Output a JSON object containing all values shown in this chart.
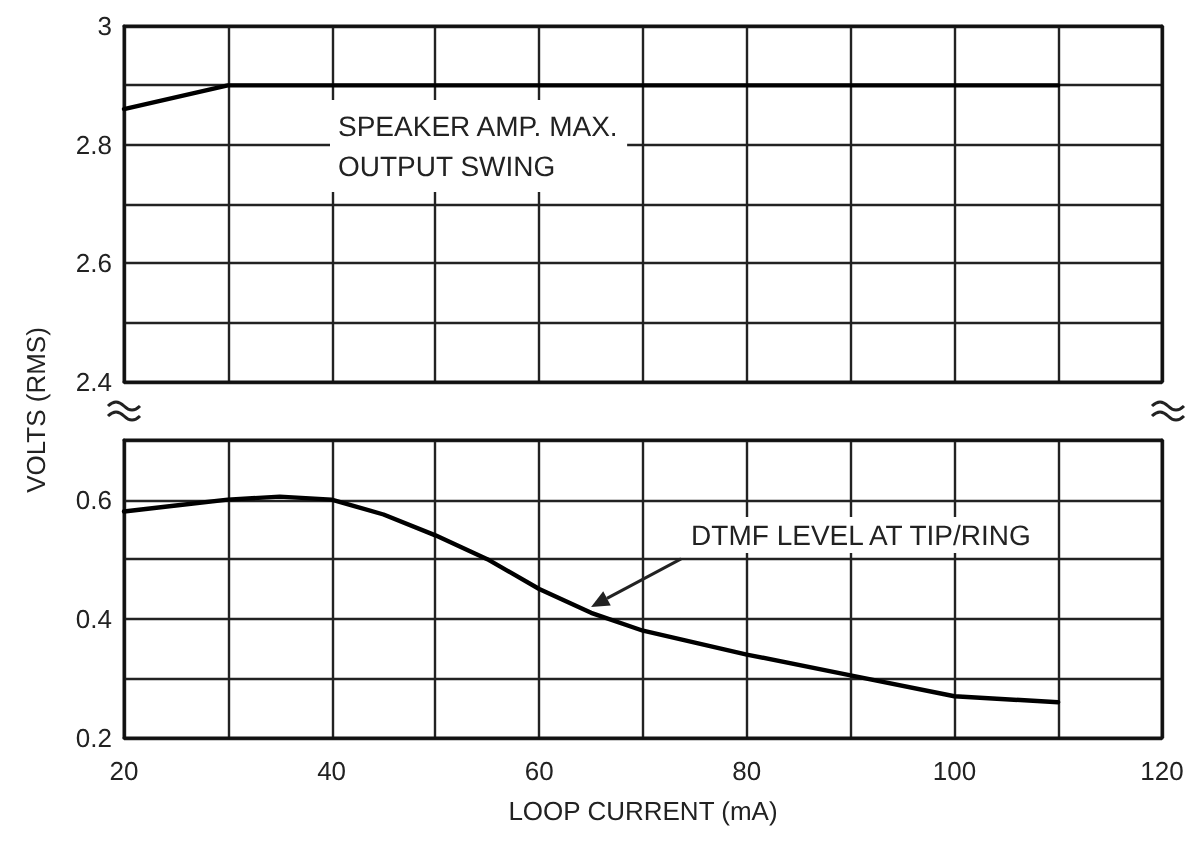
{
  "chart_data": [
    {
      "type": "line",
      "annotations": [
        "SPEAKER AMP. MAX.\nOUTPUT SWING"
      ],
      "x": [
        20,
        30,
        40,
        50,
        60,
        70,
        80,
        90,
        100,
        110
      ],
      "series": [
        {
          "color": "#000000",
          "values": [
            2.86,
            2.9,
            2.9,
            2.9,
            2.9,
            2.9,
            2.9,
            2.9,
            2.9,
            2.9
          ]
        }
      ],
      "xlim": [
        20,
        120
      ],
      "xticks": [
        20,
        {
          "value": 30,
          "label": null
        },
        40,
        {
          "value": 50,
          "label": null
        },
        60,
        {
          "value": 70,
          "label": null
        },
        80,
        {
          "value": 90,
          "label": null
        },
        100,
        {
          "value": 110,
          "label": null
        },
        120
      ],
      "ylim": [
        2.4,
        3
      ],
      "yticks": [
        2.4,
        {
          "value": 2.5,
          "label": null
        },
        2.6,
        {
          "value": 2.7,
          "label": null
        },
        2.8,
        {
          "value": 2.9,
          "label": null
        },
        3
      ],
      "tick_labels": "y",
      "grid": true,
      "marker": "none",
      "line_style": "solid"
    },
    {
      "type": "line",
      "xlabel": "LOOP CURRENT (mA)",
      "ylabel": "VOLTS (RMS)",
      "annotations": [
        {
          "text": "DTMF LEVEL AT TIP/RING",
          "x": 65,
          "y": 0.42
        }
      ],
      "x": [
        20,
        25,
        30,
        35,
        40,
        45,
        50,
        55,
        60,
        65,
        70,
        80,
        90,
        100,
        110
      ],
      "series": [
        {
          "color": "#000000",
          "values": [
            0.58,
            0.59,
            0.6,
            0.605,
            0.6,
            0.575,
            0.54,
            0.5,
            0.45,
            0.41,
            0.38,
            0.34,
            0.305,
            0.27,
            0.26
          ]
        }
      ],
      "xlim": [
        20,
        120
      ],
      "xticks": [
        20,
        {
          "value": 30,
          "label": null
        },
        40,
        {
          "value": 50,
          "label": null
        },
        60,
        {
          "value": 70,
          "label": null
        },
        80,
        {
          "value": 90,
          "label": null
        },
        100,
        {
          "value": 110,
          "label": null
        },
        120
      ],
      "ylim": [
        0.2,
        0.7
      ],
      "yticks": [
        0.2,
        {
          "value": 0.3,
          "label": null
        },
        0.4,
        {
          "value": 0.5,
          "label": null
        },
        0.6,
        {
          "value": 0.7,
          "label": null
        }
      ],
      "grid": true,
      "marker": "none",
      "line_style": "solid"
    }
  ]
}
